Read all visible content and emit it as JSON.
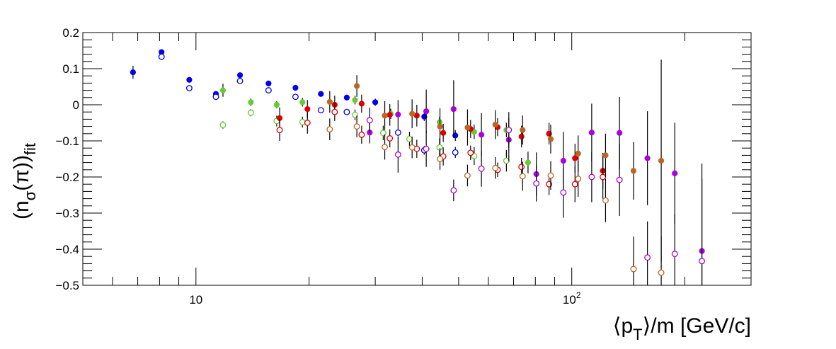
{
  "chart_data": {
    "type": "scatter",
    "title": "",
    "x_scale": "log",
    "xlim": [
      5,
      300
    ],
    "ylim": [
      -0.5,
      0.2
    ],
    "grid": false,
    "legend": "none",
    "x_ticks": [
      {
        "value": 10,
        "label": "10"
      },
      {
        "value": 100,
        "label": "10^2"
      }
    ],
    "y_ticks": [
      {
        "value": 0.2,
        "label": "0.2"
      },
      {
        "value": 0.1,
        "label": "0.1"
      },
      {
        "value": 0,
        "label": "0"
      },
      {
        "value": -0.1,
        "label": "−0.1"
      },
      {
        "value": -0.2,
        "label": "−0.2"
      },
      {
        "value": -0.3,
        "label": "−0.3"
      },
      {
        "value": -0.4,
        "label": "−0.4"
      },
      {
        "value": -0.5,
        "label": "−0.5"
      }
    ],
    "xlabel": {
      "pre": "⟨p",
      "sub": "T",
      "post": "⟩/m [GeV/c]"
    },
    "ylabel": {
      "pre": "(n",
      "sub1": "σ",
      "mid": "(π))",
      "sub2": "fit"
    },
    "series": [
      {
        "color": "#0000ee",
        "filled": true,
        "points": [
          [
            6.8,
            0.09,
            0.018
          ],
          [
            8.1,
            0.146,
            0.006
          ],
          [
            9.6,
            0.069,
            0.006
          ],
          [
            11.3,
            0.03,
            0.006
          ],
          [
            13.1,
            0.082,
            0.006
          ],
          [
            15.6,
            0.059,
            0.006
          ],
          [
            18.4,
            0.047,
            0.008
          ],
          [
            21.5,
            0.03,
            0.008
          ],
          [
            25.2,
            0.02,
            0.008
          ],
          [
            30.0,
            0.007,
            0.01
          ],
          [
            40.5,
            -0.033,
            0.012
          ],
          [
            49.0,
            -0.085,
            0.015
          ]
        ]
      },
      {
        "color": "#0000ee",
        "filled": false,
        "points": [
          [
            8.1,
            0.133,
            0.006
          ],
          [
            9.6,
            0.046,
            0.006
          ],
          [
            11.3,
            0.022,
            0.006
          ],
          [
            13.1,
            0.066,
            0.006
          ],
          [
            15.6,
            0.04,
            0.006
          ],
          [
            18.4,
            0.022,
            0.008
          ],
          [
            21.5,
            -0.015,
            0.008
          ],
          [
            25.2,
            -0.02,
            0.008
          ],
          [
            34.5,
            -0.077,
            0.01
          ],
          [
            40.5,
            -0.126,
            0.012
          ],
          [
            49.0,
            -0.132,
            0.015
          ]
        ]
      },
      {
        "color": "#66cc33",
        "filled": true,
        "points": [
          [
            11.8,
            0.04,
            0.018
          ],
          [
            14.0,
            0.007,
            0.01
          ],
          [
            16.4,
            0.0,
            0.01
          ],
          [
            19.2,
            0.007,
            0.012
          ],
          [
            26.5,
            0.013,
            0.012
          ],
          [
            33.0,
            -0.025,
            0.014
          ],
          [
            44.5,
            -0.048,
            0.015
          ],
          [
            55.0,
            -0.075,
            0.02
          ],
          [
            67.0,
            -0.07,
            0.02
          ],
          [
            76.5,
            -0.16,
            0.03
          ]
        ]
      },
      {
        "color": "#66cc33",
        "filled": false,
        "points": [
          [
            11.8,
            -0.056,
            0.01
          ],
          [
            14.0,
            -0.022,
            0.01
          ],
          [
            16.4,
            -0.045,
            0.015
          ],
          [
            19.2,
            -0.048,
            0.015
          ],
          [
            26.5,
            -0.028,
            0.015
          ],
          [
            31.5,
            -0.078,
            0.02
          ],
          [
            37.0,
            -0.095,
            0.02
          ],
          [
            44.5,
            -0.118,
            0.025
          ],
          [
            55.0,
            -0.142,
            0.025
          ],
          [
            67.0,
            -0.155,
            0.03
          ]
        ]
      },
      {
        "color": "#dd0000",
        "filled": true,
        "points": [
          [
            16.7,
            -0.037,
            0.03
          ],
          [
            19.8,
            -0.012,
            0.025
          ],
          [
            23.4,
            0.0,
            0.025
          ],
          [
            27.6,
            0.003,
            0.025
          ],
          [
            32.8,
            -0.028,
            0.03
          ],
          [
            38.7,
            -0.03,
            0.03
          ],
          [
            45.5,
            -0.078,
            0.025
          ],
          [
            53.8,
            -0.067,
            0.025
          ],
          [
            63.5,
            -0.062,
            0.025
          ],
          [
            73.5,
            -0.088,
            0.03
          ],
          [
            87.0,
            -0.08,
            0.03
          ],
          [
            102.0,
            -0.148,
            0.04
          ],
          [
            121.0,
            -0.183,
            0.05
          ]
        ]
      },
      {
        "color": "#dd0000",
        "filled": false,
        "points": [
          [
            16.7,
            -0.07,
            0.03
          ],
          [
            19.8,
            -0.05,
            0.03
          ],
          [
            23.4,
            -0.02,
            0.025
          ],
          [
            27.6,
            -0.083,
            0.025
          ],
          [
            32.8,
            -0.093,
            0.025
          ],
          [
            38.7,
            -0.122,
            0.025
          ],
          [
            45.5,
            -0.143,
            0.025
          ],
          [
            53.8,
            -0.133,
            0.02
          ],
          [
            63.5,
            -0.18,
            0.02
          ],
          [
            73.5,
            -0.172,
            0.025
          ],
          [
            87.0,
            -0.22,
            0.03
          ],
          [
            102.0,
            -0.22,
            0.05
          ],
          [
            121.0,
            -0.2,
            0.06
          ]
        ]
      },
      {
        "color": "#bb6622",
        "filled": true,
        "points": [
          [
            22.7,
            0.008,
            0.03
          ],
          [
            26.8,
            0.052,
            0.03
          ],
          [
            31.8,
            -0.03,
            0.04
          ],
          [
            37.6,
            -0.025,
            0.04
          ],
          [
            44.6,
            -0.06,
            0.05
          ],
          [
            52.8,
            -0.063,
            0.05
          ],
          [
            62.6,
            -0.055,
            0.04
          ],
          [
            74.0,
            -0.07,
            0.04
          ],
          [
            87.9,
            -0.095,
            0.04
          ],
          [
            104.0,
            -0.135,
            0.05
          ],
          [
            123.0,
            -0.14,
            0.06
          ],
          [
            146.0,
            -0.183,
            0.08
          ],
          [
            173.0,
            -0.155,
            0.28
          ]
        ]
      },
      {
        "color": "#bb6622",
        "filled": false,
        "points": [
          [
            22.7,
            -0.068,
            0.03
          ],
          [
            26.8,
            -0.06,
            0.03
          ],
          [
            31.8,
            -0.117,
            0.035
          ],
          [
            37.6,
            -0.118,
            0.03
          ],
          [
            44.6,
            -0.15,
            0.03
          ],
          [
            52.8,
            -0.196,
            0.03
          ],
          [
            62.6,
            -0.175,
            0.03
          ],
          [
            74.0,
            -0.198,
            0.04
          ],
          [
            87.9,
            -0.196,
            0.04
          ],
          [
            104.0,
            -0.205,
            0.05
          ],
          [
            123.0,
            -0.265,
            0.06
          ],
          [
            146.0,
            -0.455,
            0.09
          ],
          [
            173.0,
            -0.465,
            0.1
          ]
        ]
      },
      {
        "color": "#aa00dd",
        "filled": true,
        "points": [
          [
            29.0,
            -0.077,
            0.03
          ],
          [
            34.5,
            -0.027,
            0.04
          ],
          [
            41.0,
            -0.018,
            0.06
          ],
          [
            48.5,
            -0.012,
            0.08
          ],
          [
            57.5,
            -0.083,
            0.06
          ],
          [
            68.0,
            -0.097,
            0.06
          ],
          [
            80.5,
            -0.192,
            0.06
          ],
          [
            95.0,
            -0.155,
            0.08
          ],
          [
            113.0,
            -0.077,
            0.08
          ],
          [
            134.0,
            -0.078,
            0.1
          ],
          [
            159.0,
            -0.148,
            0.13
          ],
          [
            188.0,
            -0.19,
            0.14
          ],
          [
            222.0,
            -0.405,
            0.2
          ]
        ]
      },
      {
        "color": "#aa00dd",
        "filled": false,
        "points": [
          [
            29.0,
            -0.043,
            0.035
          ],
          [
            34.5,
            -0.138,
            0.05
          ],
          [
            41.0,
            -0.122,
            0.05
          ],
          [
            48.5,
            -0.237,
            0.03
          ],
          [
            57.5,
            -0.177,
            0.05
          ],
          [
            68.0,
            -0.07,
            0.05
          ],
          [
            80.5,
            -0.218,
            0.05
          ],
          [
            95.0,
            -0.243,
            0.07
          ],
          [
            113.0,
            -0.2,
            0.07
          ],
          [
            134.0,
            -0.208,
            0.1
          ],
          [
            159.0,
            -0.423,
            0.1
          ],
          [
            188.0,
            -0.413,
            0.11
          ],
          [
            222.0,
            -0.433,
            0.27
          ]
        ]
      }
    ]
  }
}
